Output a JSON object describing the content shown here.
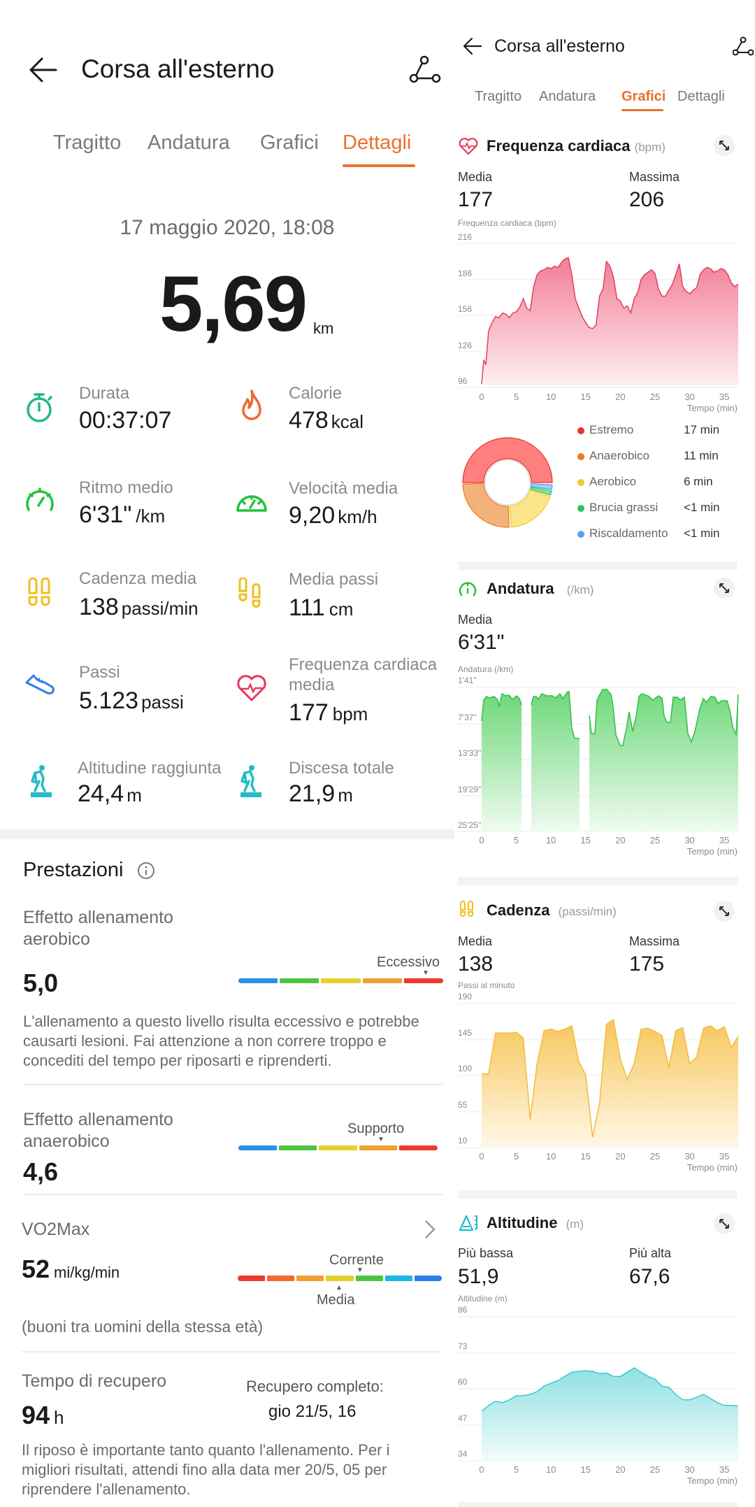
{
  "left": {
    "header": {
      "title": "Corsa all'esterno",
      "back_icon": "arrow-left-icon",
      "share_icon": "route-share-icon"
    },
    "tabs": [
      {
        "label": "Tragitto",
        "active": false
      },
      {
        "label": "Andatura",
        "active": false
      },
      {
        "label": "Grafici",
        "active": false
      },
      {
        "label": "Dettagli",
        "active": true
      }
    ],
    "date": "17 maggio 2020, 18:08",
    "distance": {
      "value": "5,69",
      "unit": "km"
    },
    "stats": [
      {
        "label": "Durata",
        "value": "00:37:07",
        "unit": "",
        "icon": "stopwatch-icon",
        "color": "#21b886"
      },
      {
        "label": "Calorie",
        "value": "478",
        "unit": "kcal",
        "icon": "flame-icon",
        "color": "#ef6a2e"
      },
      {
        "label": "Ritmo medio",
        "value": "6'31\"",
        "unit": "/km",
        "icon": "speedometer-icon",
        "color": "#27c23a"
      },
      {
        "label": "Velocità media",
        "value": "9,20",
        "unit": "km/h",
        "icon": "speedometer-icon",
        "color": "#27c23a"
      },
      {
        "label": "Cadenza media",
        "value": "138",
        "unit": "passi/min",
        "icon": "footprints-icon",
        "color": "#f2bd1d"
      },
      {
        "label": "Media passi",
        "value": "111",
        "unit": "cm",
        "icon": "footsteps-icon",
        "color": "#f2bd1d"
      },
      {
        "label": "Passi",
        "value": "5.123",
        "unit": "passi",
        "icon": "shoe-icon",
        "color": "#2f7ee6"
      },
      {
        "label": "Frequenza cardiaca media",
        "value": "177",
        "unit": "bpm",
        "icon": "heart-rate-icon",
        "color": "#e6385a"
      },
      {
        "label": "Altitudine raggiunta",
        "value": "24,4",
        "unit": "m",
        "icon": "hiker-up-icon",
        "color": "#21bcc6"
      },
      {
        "label": "Discesa totale",
        "value": "21,9",
        "unit": "m",
        "icon": "hiker-down-icon",
        "color": "#21bcc6"
      }
    ],
    "performance": {
      "title": "Prestazioni",
      "info_icon": "info-icon",
      "aerobic": {
        "label": "Effetto allenamento aerobico",
        "value": "5,0",
        "marker": "Eccessivo",
        "description": "L'allenamento a questo livello risulta eccessivo e potrebbe causarti lesioni. Fai attenzione a non correre troppo e concediti del tempo per riposarti e riprenderti.",
        "scale_colors": [
          "#2d8fe8",
          "#4cc53f",
          "#e4d02d",
          "#f0a030",
          "#ec3a2c"
        ]
      },
      "anaerobic": {
        "label": "Effetto allenamento anaerobico",
        "value": "4,6",
        "marker": "Supporto",
        "scale_colors": [
          "#2d8fe8",
          "#4cc53f",
          "#e4d02d",
          "#f0a030",
          "#ec3a2c"
        ]
      },
      "vo2max": {
        "label": "VO2Max",
        "value": "52",
        "unit": "mi/kg/min",
        "marker_top": "Corrente",
        "marker_bottom": "Media",
        "note": "(buoni tra uomini della stessa età)",
        "scale_colors": [
          "#ec3a2c",
          "#f06a2e",
          "#f0a030",
          "#e4d02d",
          "#4cc53f",
          "#23b4e3",
          "#2d7fe8"
        ]
      },
      "recovery": {
        "label": "Tempo di recupero",
        "value": "94",
        "unit": "h",
        "complete_label": "Recupero completo:",
        "complete_value": "gio 21/5, 16",
        "description": "Il riposo è importante tanto quanto l'allenamento. Per i migliori risultati, attendi fino alla data mer 20/5, 05 per riprendere l'allenamento."
      }
    }
  },
  "right": {
    "header": {
      "title": "Corsa all'esterno"
    },
    "tabs": [
      {
        "label": "Tragitto",
        "active": false
      },
      {
        "label": "Andatura",
        "active": false
      },
      {
        "label": "Grafici",
        "active": true
      },
      {
        "label": "Dettagli",
        "active": false
      }
    ],
    "heart": {
      "title": "Frequenza cardiaca",
      "unit": "(bpm)",
      "m1_label": "Media",
      "m1_value": "177",
      "m2_label": "Massima",
      "m2_value": "206",
      "axis_title": "Frequenza cardiaca (bpm)"
    },
    "zones": [
      {
        "label": "Estremo",
        "value": "17 min",
        "color": "#e8332a"
      },
      {
        "label": "Anaerobico",
        "value": "11 min",
        "color": "#ec7a22"
      },
      {
        "label": "Aerobico",
        "value": "6 min",
        "color": "#f4c92c"
      },
      {
        "label": "Brucia grassi",
        "value": "<1 min",
        "color": "#2fc45a"
      },
      {
        "label": "Riscaldamento",
        "value": "<1 min",
        "color": "#5aa0f0"
      }
    ],
    "pace": {
      "title": "Andatura",
      "unit": "(/km)",
      "m1_label": "Media",
      "m1_value": "6'31\"",
      "axis_title": "Andatura (/km)"
    },
    "cadence": {
      "title": "Cadenza",
      "unit": "(passi/min)",
      "m1_label": "Media",
      "m1_value": "138",
      "m2_label": "Massima",
      "m2_value": "175",
      "axis_title": "Passi al minuto"
    },
    "altitude": {
      "title": "Altitudine",
      "unit": "(m)",
      "m1_label": "Più bassa",
      "m1_value": "51,9",
      "m2_label": "Più alta",
      "m2_value": "67,6",
      "axis_title": "Altitudine (m)"
    },
    "x_axis_title": "Tempo (min)"
  },
  "chart_data": [
    {
      "type": "area",
      "title": "Frequenza cardiaca (bpm)",
      "xlabel": "Tempo (min)",
      "ylabel": "Frequenza cardiaca (bpm)",
      "x_ticks": [
        "0",
        "5",
        "10",
        "15",
        "20",
        "25",
        "30",
        "35"
      ],
      "y_ticks": [
        "216",
        "186",
        "156",
        "126",
        "96"
      ],
      "ylim": [
        96,
        216
      ],
      "xlim": [
        0,
        37
      ],
      "color": "#e0425f",
      "x": [
        0,
        0.3,
        0.6,
        1,
        1.5,
        2,
        2.5,
        3,
        3.5,
        4,
        4.5,
        5,
        5.5,
        6,
        6.5,
        7,
        7.5,
        8,
        8.5,
        9,
        9.5,
        10,
        10.5,
        11,
        11.5,
        12,
        12.5,
        13,
        13.5,
        14,
        14.5,
        15,
        15.5,
        16,
        16.5,
        17,
        17.5,
        18,
        18.5,
        19,
        19.5,
        20,
        20.5,
        21,
        21.5,
        22,
        22.5,
        23,
        23.5,
        24,
        24.5,
        25,
        25.5,
        26,
        26.5,
        27,
        27.5,
        28,
        28.5,
        29,
        29.5,
        30,
        30.5,
        31,
        31.5,
        32,
        32.5,
        33,
        33.5,
        34,
        34.5,
        35,
        35.5,
        36,
        36.5,
        37
      ],
      "values": [
        99,
        119,
        115,
        143,
        150,
        155,
        154,
        158,
        157,
        154,
        158,
        159,
        163,
        170,
        162,
        160,
        180,
        190,
        193,
        194,
        196,
        195,
        197,
        196,
        200,
        203,
        204,
        190,
        170,
        162,
        155,
        150,
        146,
        145,
        148,
        172,
        178,
        201,
        197,
        188,
        170,
        168,
        162,
        164,
        158,
        170,
        175,
        186,
        190,
        192,
        194,
        191,
        178,
        172,
        172,
        177,
        182,
        190,
        199,
        180,
        176,
        174,
        177,
        179,
        190,
        194,
        196,
        195,
        192,
        193,
        195,
        194,
        190,
        183,
        180,
        182
      ]
    },
    {
      "type": "pie",
      "title": "Zone frequenza cardiaca",
      "categories": [
        "Estremo",
        "Anaerobico",
        "Aerobico",
        "Brucia grassi",
        "Riscaldamento"
      ],
      "values": [
        17,
        11,
        6,
        0.5,
        0.5
      ],
      "labels": [
        "17 min",
        "11 min",
        "6 min",
        "<1 min",
        "<1 min"
      ],
      "colors": [
        "#e8332a",
        "#ec7a22",
        "#f4c92c",
        "#2fc45a",
        "#5aa0f0"
      ]
    },
    {
      "type": "area",
      "title": "Andatura (/km)",
      "xlabel": "Tempo (min)",
      "ylabel": "Andatura (/km)",
      "x_ticks": [
        "0",
        "5",
        "10",
        "15",
        "20",
        "25",
        "30",
        "35"
      ],
      "y_ticks": [
        "1'41\"",
        "7'37\"",
        "13'33\"",
        "19'29\"",
        "25'25\""
      ],
      "note": "inverted axis: faster pace at top; gaps at ~5.5–7.2 and ~14.6–15.8 min",
      "x": [
        0,
        0.3,
        1,
        2,
        2.5,
        3,
        4,
        5,
        5.5,
        7.2,
        8,
        9,
        10,
        11,
        12,
        13,
        13.5,
        14,
        14.6,
        15.8,
        16,
        16.5,
        17,
        18,
        19,
        19.5,
        20,
        20.5,
        21,
        21.5,
        22,
        23,
        24,
        25,
        25.5,
        26,
        26.5,
        27,
        28,
        29,
        29.5,
        30,
        31,
        32,
        33,
        34,
        35,
        35.5,
        36,
        36.5,
        37
      ],
      "values_min_per_km": [
        9.5,
        7.0,
        7.0,
        7.5,
        8.5,
        6.8,
        6.9,
        7.2,
        8.0,
        8.0,
        6.9,
        6.8,
        7.0,
        6.9,
        6.6,
        6.2,
        13.0,
        14.0,
        14.0,
        10.3,
        12.5,
        12.5,
        6.2,
        4.8,
        5.6,
        8.8,
        12.5,
        14.5,
        14.5,
        12.0,
        10.0,
        6.9,
        6.9,
        7.3,
        7.0,
        10.0,
        11.0,
        6.8,
        7.0,
        6.8,
        13.5,
        14.0,
        8.0,
        6.8,
        6.6,
        7.4,
        7.2,
        8.5,
        11.5,
        10.0,
        3.0
      ]
    },
    {
      "type": "area",
      "title": "Cadenza (passi/min)",
      "xlabel": "Tempo (min)",
      "ylabel": "Passi al minuto",
      "x_ticks": [
        "0",
        "5",
        "10",
        "15",
        "20",
        "25",
        "30",
        "35"
      ],
      "y_ticks": [
        "190",
        "145",
        "100",
        "55",
        "10"
      ],
      "ylim": [
        10,
        190
      ],
      "xlim": [
        0,
        37
      ],
      "color": "#f2bd3b",
      "x": [
        0,
        1,
        2,
        3,
        4,
        5,
        6,
        7,
        8,
        9,
        10,
        11,
        12,
        13,
        14,
        15,
        16,
        17,
        18,
        19,
        20,
        21,
        22,
        23,
        24,
        25,
        26,
        27,
        28,
        29,
        30,
        31,
        32,
        33,
        34,
        35,
        36,
        37
      ],
      "values": [
        102,
        102,
        153,
        153,
        153,
        154,
        147,
        45,
        115,
        156,
        158,
        155,
        158,
        162,
        117,
        101,
        23,
        65,
        164,
        170,
        120,
        95,
        115,
        158,
        159,
        155,
        150,
        110,
        156,
        160,
        115,
        123,
        159,
        162,
        156,
        161,
        135,
        149
      ]
    },
    {
      "type": "area",
      "title": "Altitudine (m)",
      "xlabel": "Tempo (min)",
      "ylabel": "Altitudine (m)",
      "x_ticks": [
        "0",
        "5",
        "10",
        "15",
        "20",
        "25",
        "30",
        "35"
      ],
      "y_ticks": [
        "86",
        "73",
        "60",
        "47",
        "34"
      ],
      "ylim": [
        34,
        86
      ],
      "xlim": [
        0,
        37
      ],
      "color": "#3fc6cc",
      "x": [
        0,
        1,
        2,
        3,
        4,
        5,
        6,
        7,
        8,
        9,
        10,
        11,
        12,
        13,
        14,
        15,
        16,
        17,
        18,
        19,
        20,
        21,
        22,
        23,
        24,
        25,
        26,
        27,
        28,
        29,
        30,
        31,
        32,
        33,
        34,
        35,
        36,
        37
      ],
      "values": [
        51.9,
        54,
        55.5,
        55,
        56,
        57.5,
        57.5,
        58,
        59,
        61,
        62,
        63,
        64.5,
        66,
        66.3,
        66.5,
        66.3,
        65.5,
        65.7,
        64.5,
        64.5,
        66,
        67.6,
        66,
        64.5,
        63.5,
        61,
        60.5,
        58,
        56,
        56,
        57,
        58,
        56.5,
        55,
        54,
        54,
        53.8
      ]
    }
  ]
}
